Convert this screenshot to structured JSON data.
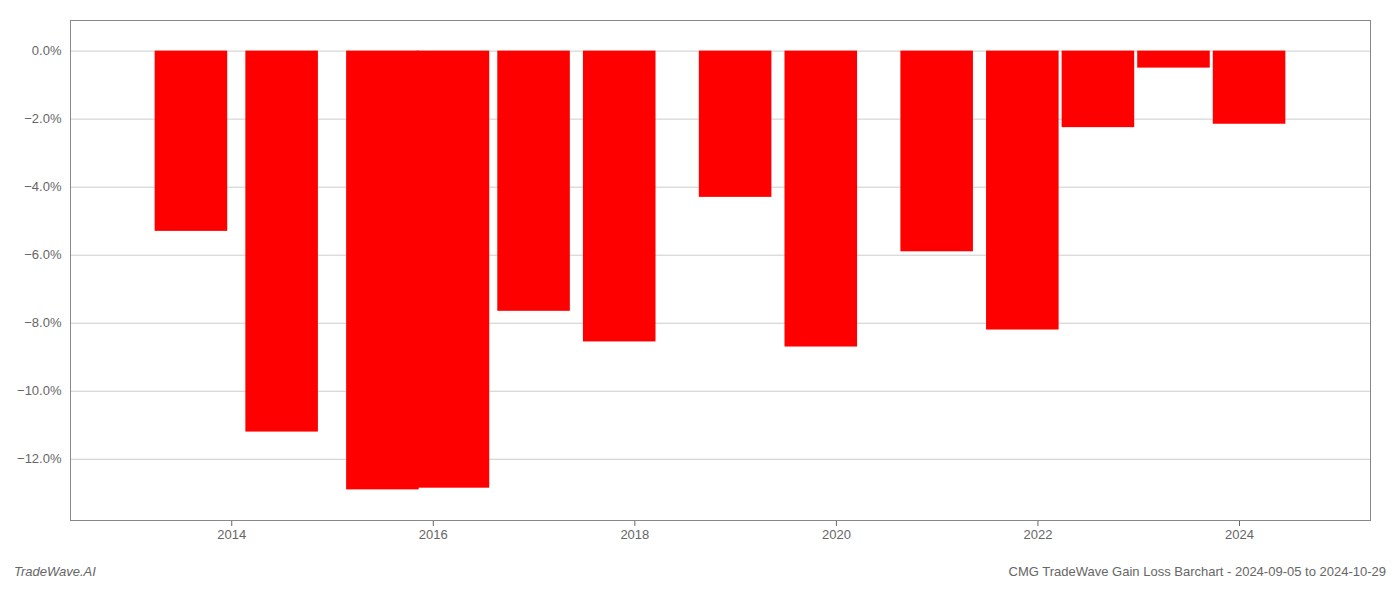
{
  "chart_data": {
    "type": "bar",
    "x": [
      2013.6,
      2014.5,
      2015.5,
      2016.2,
      2017.0,
      2017.85,
      2019.0,
      2019.85,
      2021.0,
      2021.85,
      2022.6,
      2023.35,
      2024.1
    ],
    "values": [
      -5.3,
      -11.2,
      -12.9,
      -12.85,
      -7.65,
      -8.55,
      -4.3,
      -8.7,
      -5.9,
      -8.2,
      -2.25,
      -0.5,
      -2.15
    ],
    "color": "#ff0000",
    "xlim": [
      2012.4,
      2025.3
    ],
    "xticks": [
      2014,
      2016,
      2018,
      2020,
      2022,
      2024
    ],
    "ylim": [
      -13.8,
      0.9
    ],
    "yticks": [
      {
        "value": 0.0,
        "label": "0.0%"
      },
      {
        "value": -2.0,
        "label": "−2.0%"
      },
      {
        "value": -4.0,
        "label": "−4.0%"
      },
      {
        "value": -6.0,
        "label": "−6.0%"
      },
      {
        "value": -8.0,
        "label": "−8.0%"
      },
      {
        "value": -10.0,
        "label": "−10.0%"
      },
      {
        "value": -12.0,
        "label": "−12.0%"
      }
    ],
    "grid": "y",
    "annotations": [
      "TradeWave.AI",
      "CMG TradeWave Gain Loss Barchart - 2024-09-05 to 2024-10-29"
    ]
  }
}
